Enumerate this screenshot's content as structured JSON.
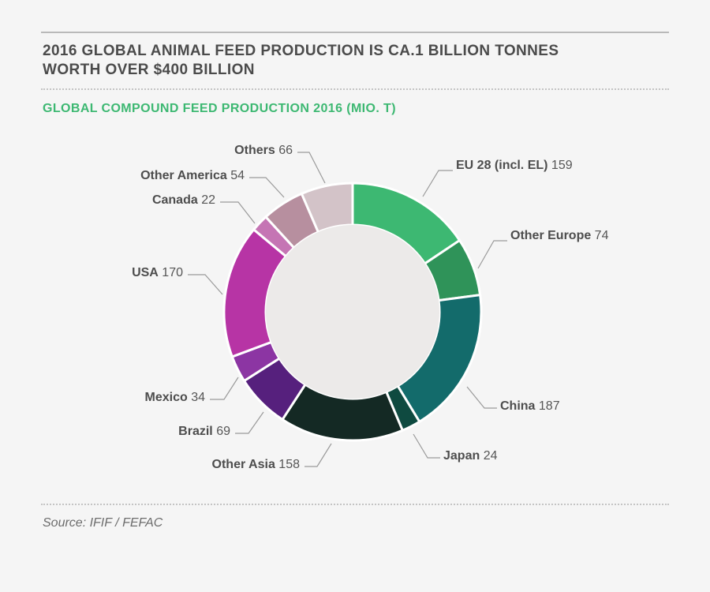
{
  "header": {
    "title_line1": "2016 GLOBAL ANIMAL FEED PRODUCTION IS CA.1 BILLION TONNES",
    "title_line2": "WORTH OVER $400 BILLION",
    "subtitle": "GLOBAL COMPOUND FEED PRODUCTION 2016 (MIO. T)"
  },
  "footer": {
    "source": "Source: IFIF / FEFAC"
  },
  "chart_data": {
    "type": "pie",
    "style": "donut",
    "title": "GLOBAL COMPOUND FEED PRODUCTION 2016 (MIO. T)",
    "unit": "mio. t",
    "slices": [
      {
        "label": "EU 28 (incl. EL)",
        "value": 159,
        "color": "#3db872"
      },
      {
        "label": "Other Europe",
        "value": 74,
        "color": "#2f9359"
      },
      {
        "label": "China",
        "value": 187,
        "color": "#136b6b"
      },
      {
        "label": "Japan",
        "value": 24,
        "color": "#0f4a40"
      },
      {
        "label": "Other Asia",
        "value": 158,
        "color": "#142924"
      },
      {
        "label": "Brazil",
        "value": 69,
        "color": "#56207d"
      },
      {
        "label": "Mexico",
        "value": 34,
        "color": "#8c35a3"
      },
      {
        "label": "USA",
        "value": 170,
        "color": "#b734a5"
      },
      {
        "label": "Canada",
        "value": 22,
        "color": "#c575b4"
      },
      {
        "label": "Other America",
        "value": 54,
        "color": "#b78f9f"
      },
      {
        "label": "Others",
        "value": 66,
        "color": "#d3c3c8"
      }
    ]
  }
}
